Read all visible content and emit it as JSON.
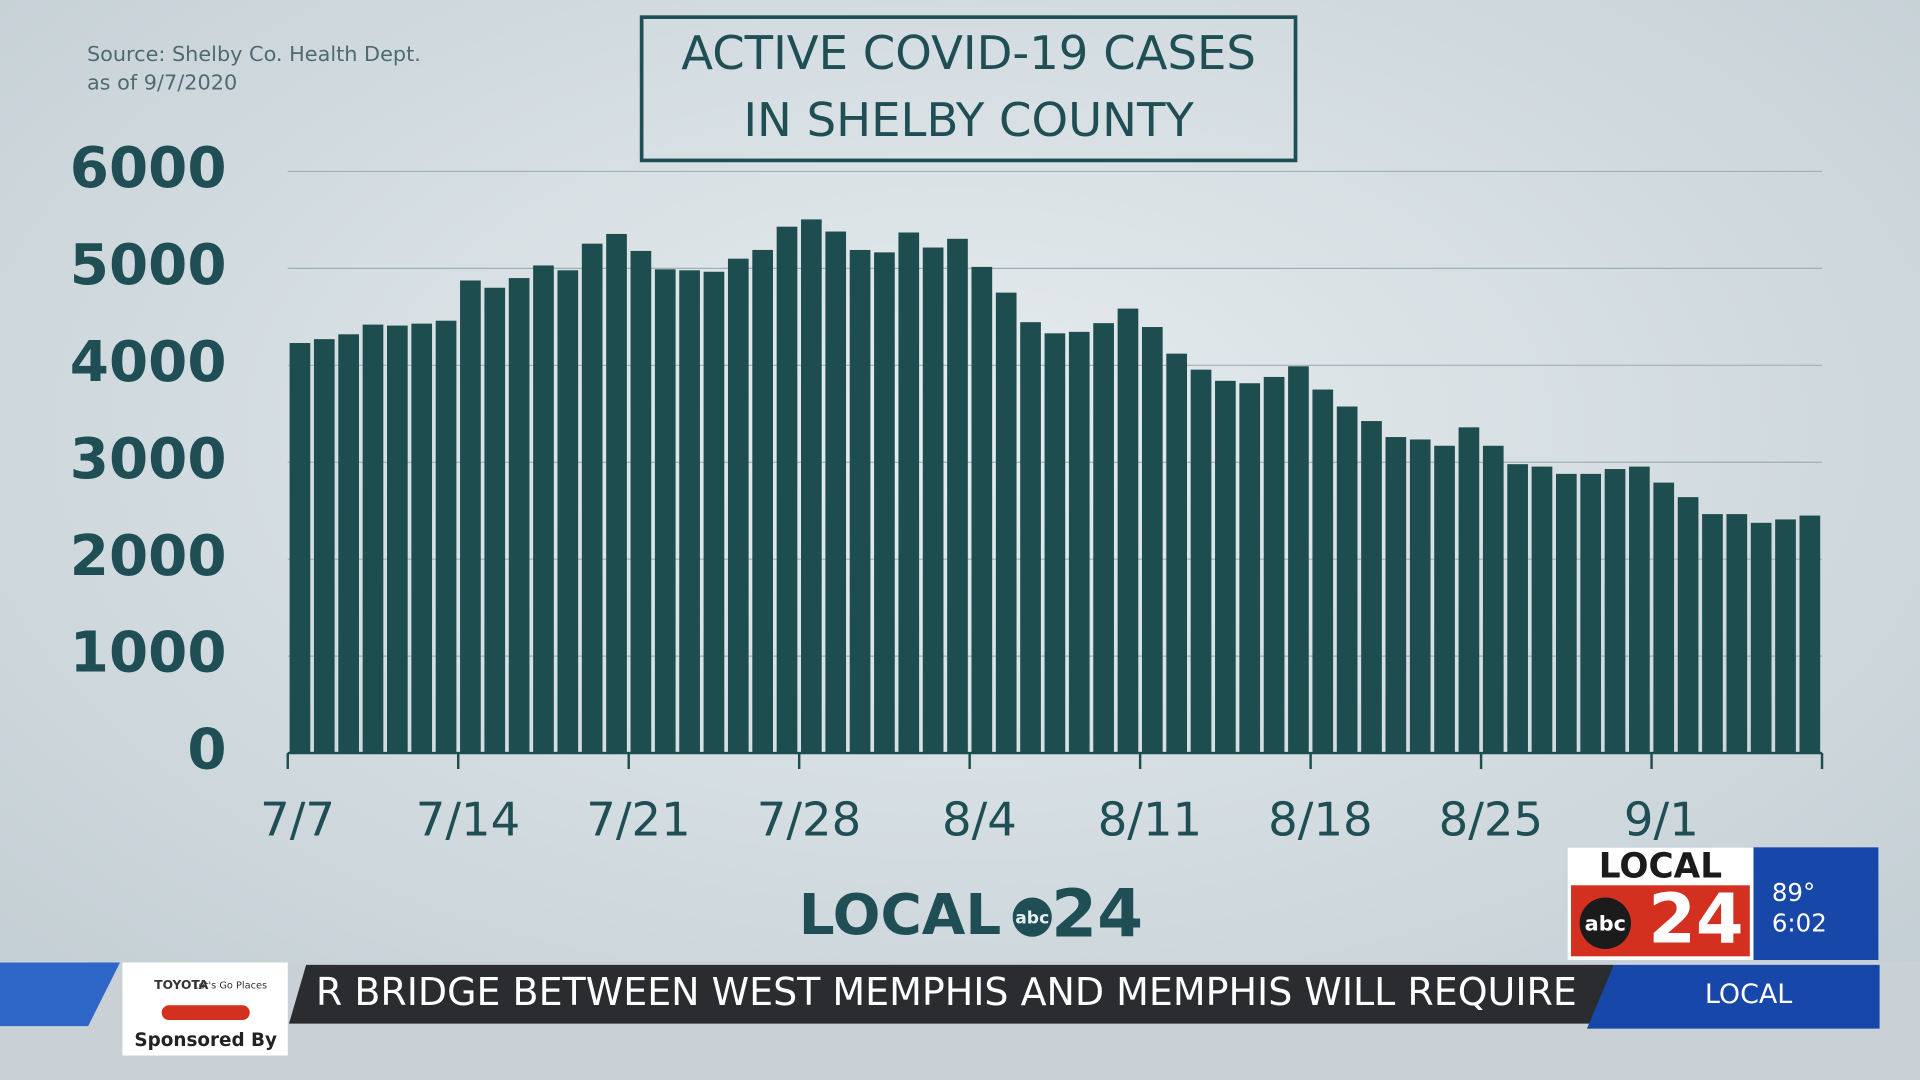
{
  "chart_data": {
    "type": "bar",
    "title": [
      "ACTIVE COVID-19 CASES",
      "IN SHELBY COUNTY"
    ],
    "source": [
      "Source:  Shelby Co. Health Dept.",
      "as of 9/7/2020"
    ],
    "categories": [
      "7/7",
      null,
      null,
      null,
      null,
      null,
      null,
      "7/14",
      null,
      null,
      null,
      null,
      null,
      null,
      "7/21",
      null,
      null,
      null,
      null,
      null,
      null,
      "7/28",
      null,
      null,
      null,
      null,
      null,
      null,
      "8/4",
      null,
      null,
      null,
      null,
      null,
      null,
      "8/11",
      null,
      null,
      null,
      null,
      null,
      null,
      "8/18",
      null,
      null,
      null,
      null,
      null,
      null,
      "8/25",
      null,
      null,
      null,
      null,
      null,
      null,
      "9/1",
      null,
      null,
      null,
      null,
      null,
      null
    ],
    "values": [
      4230,
      4270,
      4320,
      4420,
      4410,
      4430,
      4460,
      4875,
      4800,
      4900,
      5030,
      4980,
      5255,
      5355,
      5180,
      4990,
      4980,
      4965,
      5100,
      5190,
      5430,
      5505,
      5380,
      5190,
      5165,
      5370,
      5215,
      5305,
      5015,
      4750,
      4445,
      4330,
      4345,
      4435,
      4585,
      4395,
      4120,
      3955,
      3840,
      3815,
      3880,
      3990,
      3750,
      3575,
      3425,
      3260,
      3235,
      3170,
      3360,
      3170,
      2980,
      2955,
      2880,
      2880,
      2930,
      2955,
      2790,
      2640,
      2465,
      2465,
      2375,
      2410,
      2450
    ],
    "color": "#1e4d50",
    "ylim": [
      0,
      6000
    ],
    "yticks": [
      0,
      1000,
      2000,
      3000,
      4000,
      5000,
      6000
    ],
    "grid": true
  },
  "overlay": {
    "logo": {
      "word": "LOCAL",
      "network": "abc",
      "number": "24"
    },
    "ticker": "R BRIDGE BETWEEN WEST MEMPHIS AND MEMPHIS WILL REQUIRE",
    "ticker_tag": "LOCAL",
    "bug": {
      "word": "LOCAL",
      "network": "abc",
      "number": "24",
      "temp": "89°",
      "time": "6:02"
    },
    "sponsor": {
      "brand": "TOYOTA",
      "slogan": "Let's Go Places",
      "label": "Sponsored By"
    }
  }
}
